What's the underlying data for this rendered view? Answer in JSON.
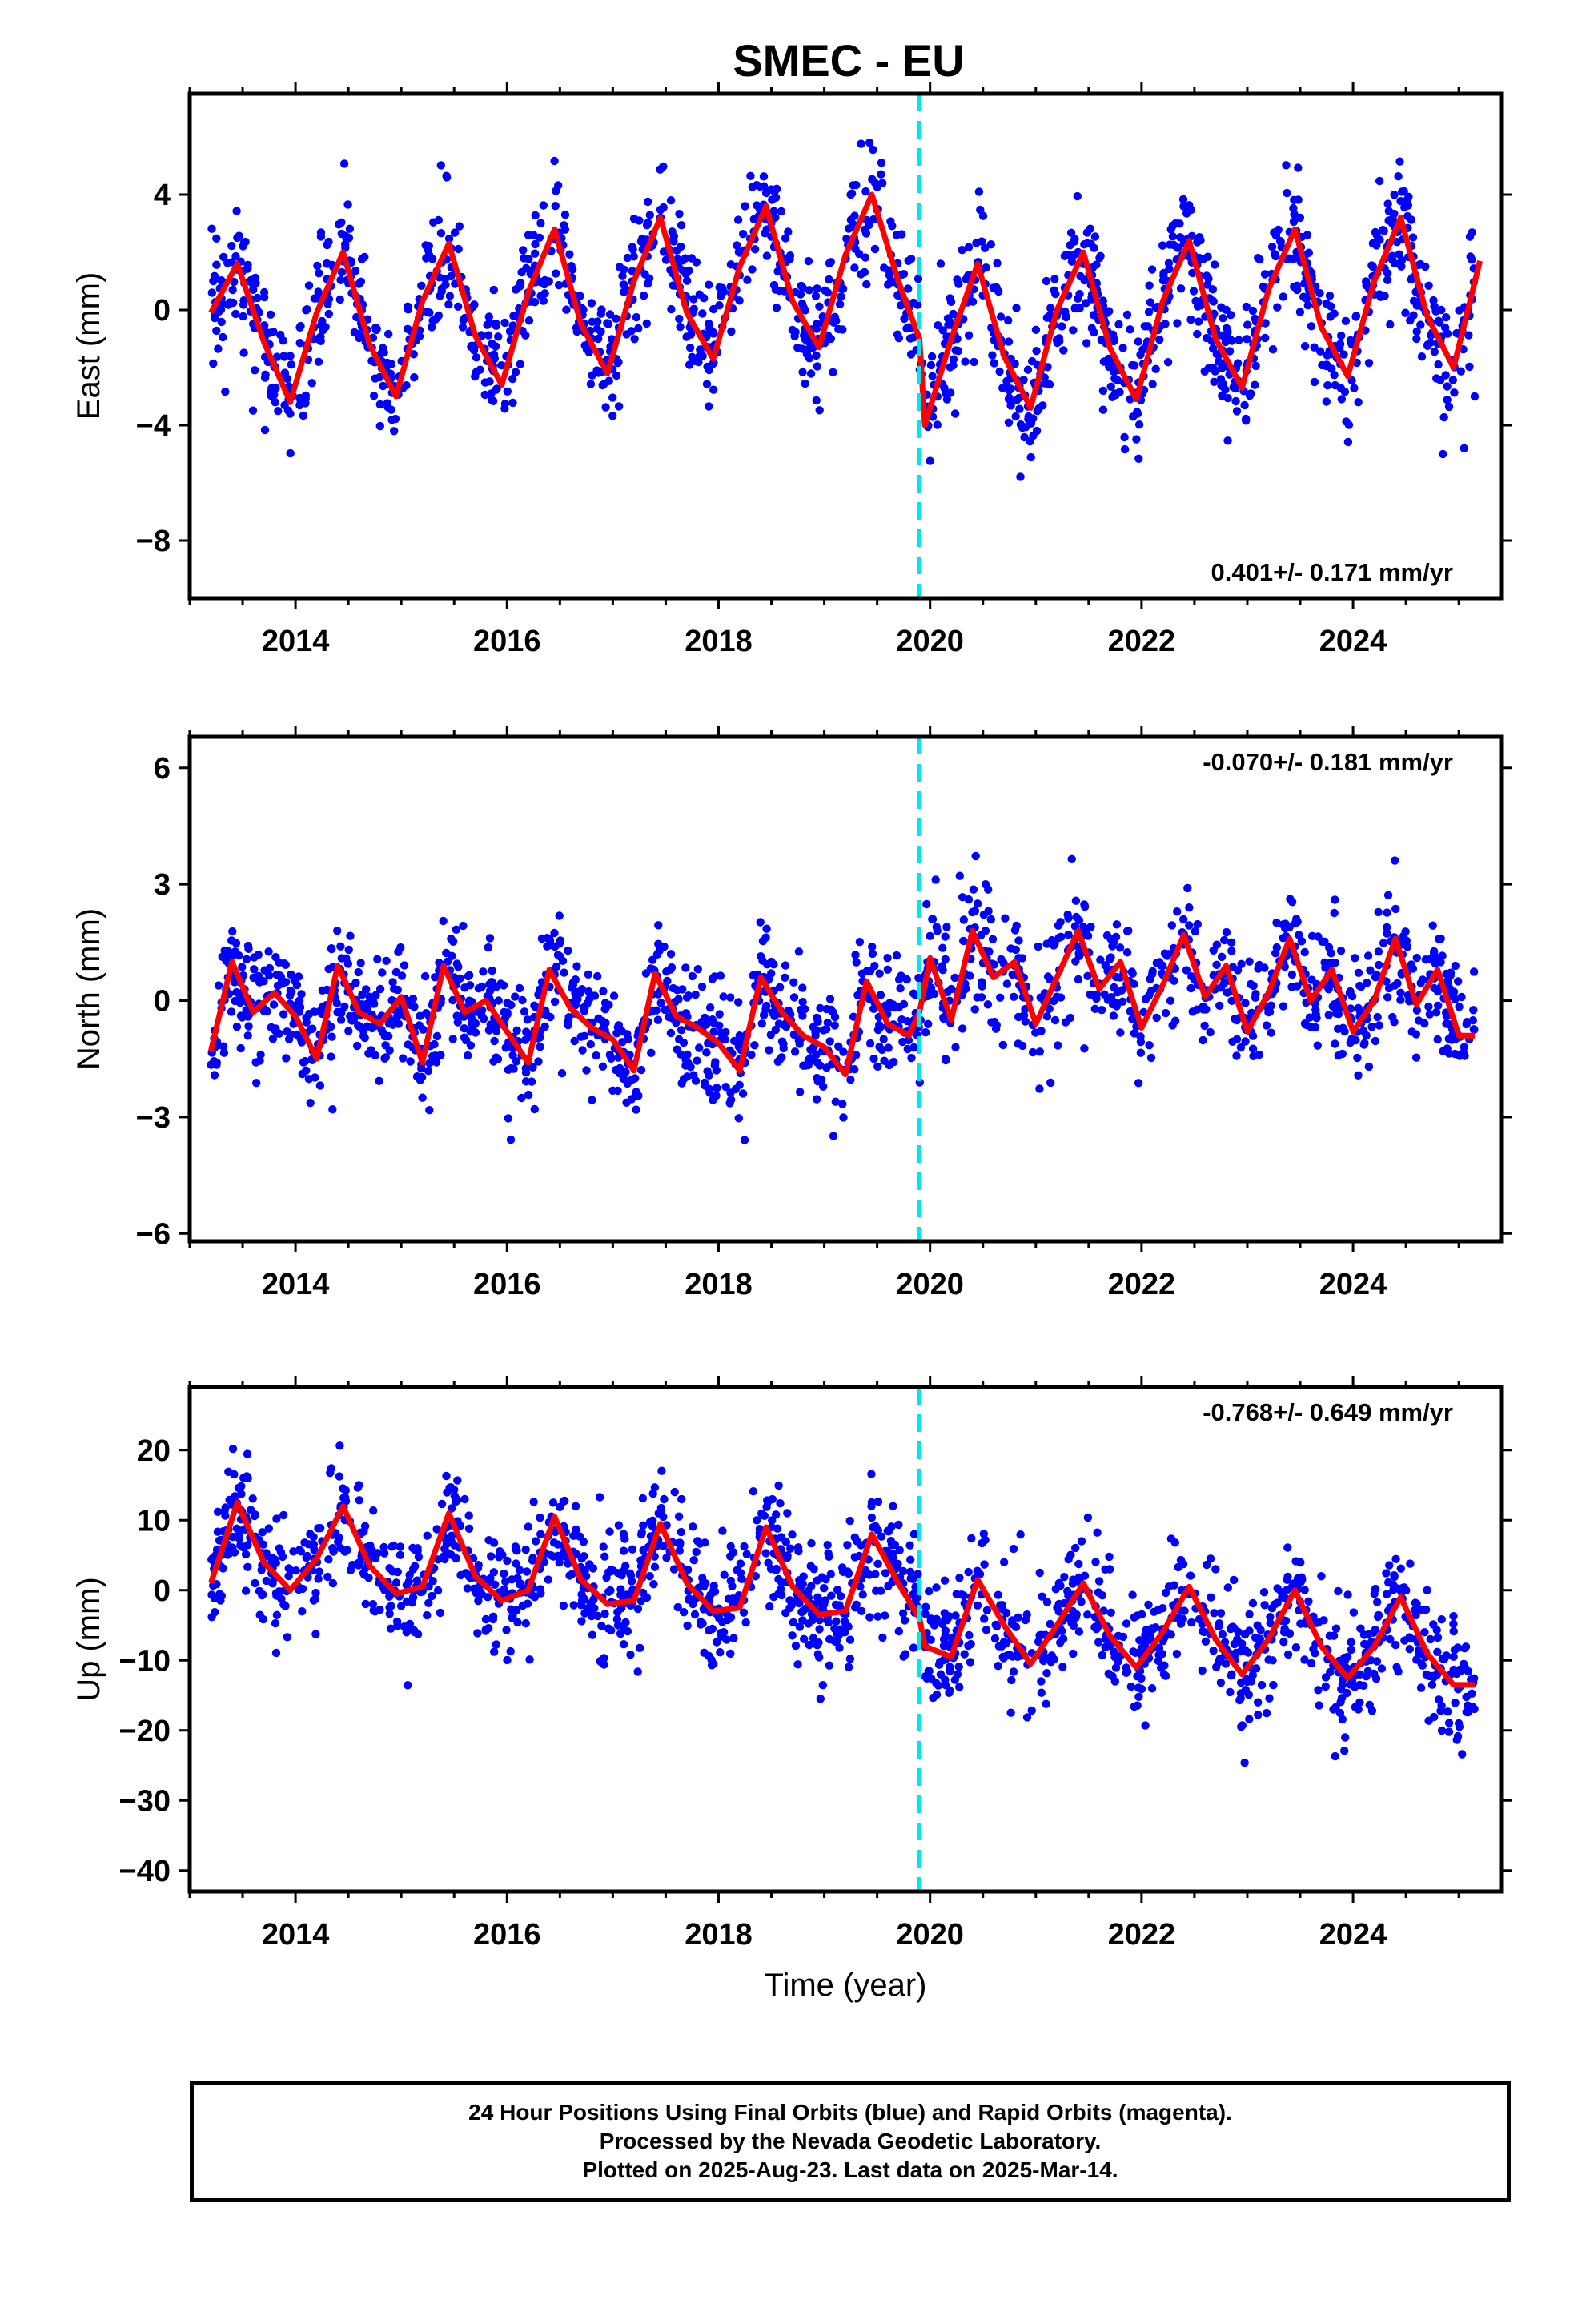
{
  "title": "SMEC - EU",
  "colors": {
    "data": "#0000ff",
    "model": "#ff0000",
    "event_line": "#00e5ee",
    "frame": "#000000"
  },
  "chart_data": [
    {
      "type": "scatter",
      "component": "east",
      "ylabel": "East (mm)",
      "xlim": [
        2013.0,
        2025.4
      ],
      "ylim": [
        -10.0,
        7.5
      ],
      "yticks": [
        4,
        0,
        -4,
        -8
      ],
      "xticks": [
        2014,
        2016,
        2018,
        2020,
        2022,
        2024
      ],
      "rate_label": "0.401+/- 0.171 mm/yr",
      "rate_position": "bottom-right",
      "event_line_x": 2019.9,
      "model": {
        "x": [
          2013.2,
          2013.45,
          2013.7,
          2013.95,
          2014.2,
          2014.45,
          2014.7,
          2014.95,
          2015.2,
          2015.45,
          2015.7,
          2015.95,
          2016.2,
          2016.45,
          2016.7,
          2016.95,
          2017.2,
          2017.45,
          2017.7,
          2017.95,
          2018.2,
          2018.45,
          2018.7,
          2018.95,
          2019.2,
          2019.45,
          2019.7,
          2019.9,
          2019.95,
          2020.2,
          2020.45,
          2020.7,
          2020.95,
          2021.2,
          2021.45,
          2021.7,
          2021.95,
          2022.2,
          2022.45,
          2022.7,
          2022.95,
          2023.2,
          2023.45,
          2023.7,
          2023.95,
          2024.2,
          2024.45,
          2024.7,
          2024.95,
          2025.2
        ],
        "y": [
          -0.1,
          1.6,
          -1.1,
          -3.2,
          -0.1,
          2.0,
          -1.2,
          -3.0,
          0.3,
          2.3,
          -0.9,
          -2.6,
          0.6,
          2.8,
          -0.5,
          -2.2,
          1.0,
          3.2,
          -0.1,
          -1.7,
          1.5,
          3.6,
          0.3,
          -1.3,
          1.9,
          4.0,
          1.0,
          -1.0,
          -4.0,
          -1.0,
          1.6,
          -1.6,
          -3.4,
          0.0,
          2.0,
          -1.3,
          -3.1,
          0.3,
          2.4,
          -1.0,
          -2.7,
          0.7,
          2.8,
          -0.6,
          -2.3,
          1.0,
          3.2,
          -0.2,
          -2.0,
          1.7
        ]
      },
      "points": {
        "x": [
          2013.3,
          2013.6,
          2013.95,
          2014.3,
          2014.6,
          2014.9,
          2015.25,
          2015.55,
          2015.85,
          2016.25,
          2016.55,
          2016.85,
          2017.25,
          2017.55,
          2017.85,
          2018.25,
          2018.55,
          2018.85,
          2019.25,
          2019.55,
          2019.8,
          2020.1,
          2020.4,
          2020.75,
          2021.1,
          2021.4,
          2021.75,
          2022.1,
          2022.4,
          2022.75,
          2023.1,
          2023.4,
          2023.75,
          2024.05,
          2024.35,
          2024.6,
          2024.85,
          2025.05,
          2025.15
        ],
        "y": [
          0.4,
          0.7,
          -3.6,
          1.6,
          0.9,
          -2.6,
          2.2,
          2.9,
          -2.9,
          2.6,
          3.3,
          -2.1,
          3.1,
          3.8,
          -1.6,
          3.6,
          4.2,
          -1.1,
          4.0,
          4.4,
          -0.6,
          1.6,
          1.2,
          -3.1,
          1.0,
          2.0,
          -2.9,
          1.4,
          2.3,
          -2.4,
          1.8,
          2.7,
          -1.9,
          -3.2,
          -0.5,
          -1.0,
          -5.0,
          -4.8,
          -3.0
        ]
      }
    },
    {
      "type": "scatter",
      "component": "north",
      "ylabel": "North (mm)",
      "xlim": [
        2013.0,
        2025.4
      ],
      "ylim": [
        -6.2,
        6.8
      ],
      "yticks": [
        6,
        3,
        0,
        -3,
        -6
      ],
      "xticks": [
        2014,
        2016,
        2018,
        2020,
        2022,
        2024
      ],
      "rate_label": "-0.070+/- 0.181 mm/yr",
      "rate_position": "top-right",
      "event_line_x": 2019.9,
      "model": {
        "x": [
          2013.2,
          2013.4,
          2013.6,
          2013.8,
          2014.0,
          2014.2,
          2014.4,
          2014.6,
          2014.8,
          2015.0,
          2015.2,
          2015.4,
          2015.6,
          2015.8,
          2016.0,
          2016.2,
          2016.4,
          2016.6,
          2016.8,
          2017.0,
          2017.2,
          2017.4,
          2017.6,
          2017.8,
          2018.0,
          2018.2,
          2018.4,
          2018.6,
          2018.8,
          2019.0,
          2019.2,
          2019.4,
          2019.6,
          2019.8,
          2019.9,
          2020.0,
          2020.2,
          2020.4,
          2020.6,
          2020.8,
          2021.0,
          2021.2,
          2021.4,
          2021.6,
          2021.8,
          2022.0,
          2022.2,
          2022.4,
          2022.6,
          2022.8,
          2023.0,
          2023.2,
          2023.4,
          2023.6,
          2023.8,
          2024.0,
          2024.2,
          2024.4,
          2024.6,
          2024.8,
          2025.0,
          2025.15
        ],
        "y": [
          -1.3,
          1.0,
          -0.3,
          0.2,
          -0.4,
          -1.5,
          0.9,
          -0.3,
          -0.6,
          0.1,
          -1.6,
          0.9,
          -0.3,
          0.0,
          -0.8,
          -1.6,
          0.8,
          -0.2,
          -0.7,
          -1.0,
          -1.8,
          0.7,
          -0.4,
          -0.7,
          -1.1,
          -1.8,
          0.6,
          -0.3,
          -0.9,
          -1.2,
          -1.9,
          0.5,
          -0.6,
          -0.9,
          -0.3,
          1.1,
          -0.5,
          1.8,
          0.6,
          1.0,
          -0.6,
          0.6,
          1.8,
          0.3,
          1.0,
          -0.7,
          0.4,
          1.7,
          0.1,
          0.9,
          -0.8,
          0.2,
          1.6,
          0.0,
          0.8,
          -0.8,
          0.0,
          1.6,
          -0.1,
          0.8,
          -0.9,
          -0.9
        ]
      },
      "points": {
        "x": [
          2013.3,
          2013.7,
          2014.1,
          2014.35,
          2014.7,
          2015.2,
          2015.5,
          2015.9,
          2016.3,
          2016.5,
          2016.9,
          2017.3,
          2017.55,
          2017.9,
          2018.25,
          2018.5,
          2018.9,
          2019.3,
          2019.6,
          2019.85,
          2020.2,
          2020.45,
          2020.8,
          2021.2,
          2021.45,
          2021.8,
          2022.2,
          2022.45,
          2022.85,
          2023.2,
          2023.45,
          2023.8,
          2024.15,
          2024.45,
          2024.8,
          2025.05
        ],
        "y": [
          -0.2,
          0.5,
          -1.8,
          -2.8,
          0.1,
          -2.5,
          0.6,
          -0.6,
          -0.2,
          1.5,
          -0.9,
          -0.5,
          1.2,
          -1.1,
          -1.6,
          1.0,
          -1.2,
          -1.4,
          0.8,
          -0.5,
          0.3,
          2.5,
          0.9,
          0.1,
          1.9,
          0.6,
          0.9,
          2.4,
          1.5,
          -0.3,
          1.4,
          0.5,
          -1.7,
          0.2,
          -1.0,
          -1.2
        ]
      }
    },
    {
      "type": "scatter",
      "component": "up",
      "ylabel": "Up (mm)",
      "xlabel": "Time (year)",
      "xlim": [
        2013.0,
        2025.4
      ],
      "ylim": [
        -43.0,
        29.0
      ],
      "yticks": [
        20,
        10,
        0,
        -10,
        -20,
        -30,
        -40
      ],
      "xticks": [
        2014,
        2016,
        2018,
        2020,
        2022,
        2024
      ],
      "rate_label": "-0.768+/- 0.649 mm/yr",
      "rate_position": "top-right",
      "event_line_x": 2019.9,
      "model": {
        "x": [
          2013.2,
          2013.45,
          2013.7,
          2013.95,
          2014.2,
          2014.45,
          2014.7,
          2014.95,
          2015.2,
          2015.45,
          2015.7,
          2015.95,
          2016.2,
          2016.45,
          2016.7,
          2016.95,
          2017.2,
          2017.45,
          2017.7,
          2017.95,
          2018.2,
          2018.45,
          2018.7,
          2018.95,
          2019.2,
          2019.45,
          2019.7,
          2019.9,
          2019.95,
          2020.2,
          2020.45,
          2020.7,
          2020.95,
          2021.2,
          2021.45,
          2021.7,
          2021.95,
          2022.2,
          2022.45,
          2022.7,
          2022.95,
          2023.2,
          2023.45,
          2023.7,
          2023.95,
          2024.2,
          2024.45,
          2024.7,
          2024.95,
          2025.15
        ],
        "y": [
          1.0,
          12.5,
          4.0,
          0.0,
          4.5,
          12.0,
          3.5,
          -0.5,
          0.5,
          11.0,
          2.0,
          -1.5,
          0.0,
          10.5,
          1.5,
          -2.0,
          -1.5,
          9.5,
          1.0,
          -3.0,
          -2.5,
          9.0,
          0.5,
          -3.5,
          -3.0,
          8.0,
          1.0,
          -4.0,
          -8.0,
          -9.5,
          1.5,
          -5.0,
          -10.5,
          -5.0,
          1.0,
          -6.5,
          -11.0,
          -6.0,
          0.5,
          -7.0,
          -12.0,
          -7.0,
          0.0,
          -8.0,
          -12.5,
          -8.0,
          -1.0,
          -9.0,
          -13.5,
          -13.5
        ]
      },
      "points": {
        "x": [
          2013.3,
          2013.55,
          2013.9,
          2014.35,
          2014.6,
          2015.05,
          2015.3,
          2015.6,
          2016.05,
          2016.35,
          2016.65,
          2017.05,
          2017.35,
          2017.65,
          2018.05,
          2018.35,
          2018.65,
          2019.05,
          2019.35,
          2019.65,
          2019.85,
          2020.1,
          2020.35,
          2020.7,
          2021.05,
          2021.35,
          2021.7,
          2022.1,
          2022.35,
          2022.7,
          2023.1,
          2023.35,
          2023.7,
          2024.05,
          2024.35,
          2024.7,
          2025.0
        ],
        "y": [
          5.0,
          16.0,
          0.0,
          6.0,
          15.0,
          -6.0,
          3.0,
          13.0,
          -4.0,
          4.0,
          12.0,
          -5.0,
          2.0,
          13.0,
          -6.0,
          2.0,
          11.0,
          -7.0,
          2.0,
          12.0,
          8.0,
          -12.0,
          -4.0,
          4.0,
          -13.0,
          -3.0,
          3.0,
          -14.0,
          -4.0,
          3.0,
          -16.0,
          -6.0,
          2.0,
          -17.0,
          -7.0,
          0.0,
          -19.0
        ]
      }
    }
  ],
  "footer": {
    "line1": "24 Hour Positions Using Final Orbits (blue) and Rapid Orbits (magenta).",
    "line2": "Processed by the Nevada Geodetic Laboratory.",
    "line3": "Plotted on 2025-Aug-23. Last data on 2025-Mar-14."
  }
}
